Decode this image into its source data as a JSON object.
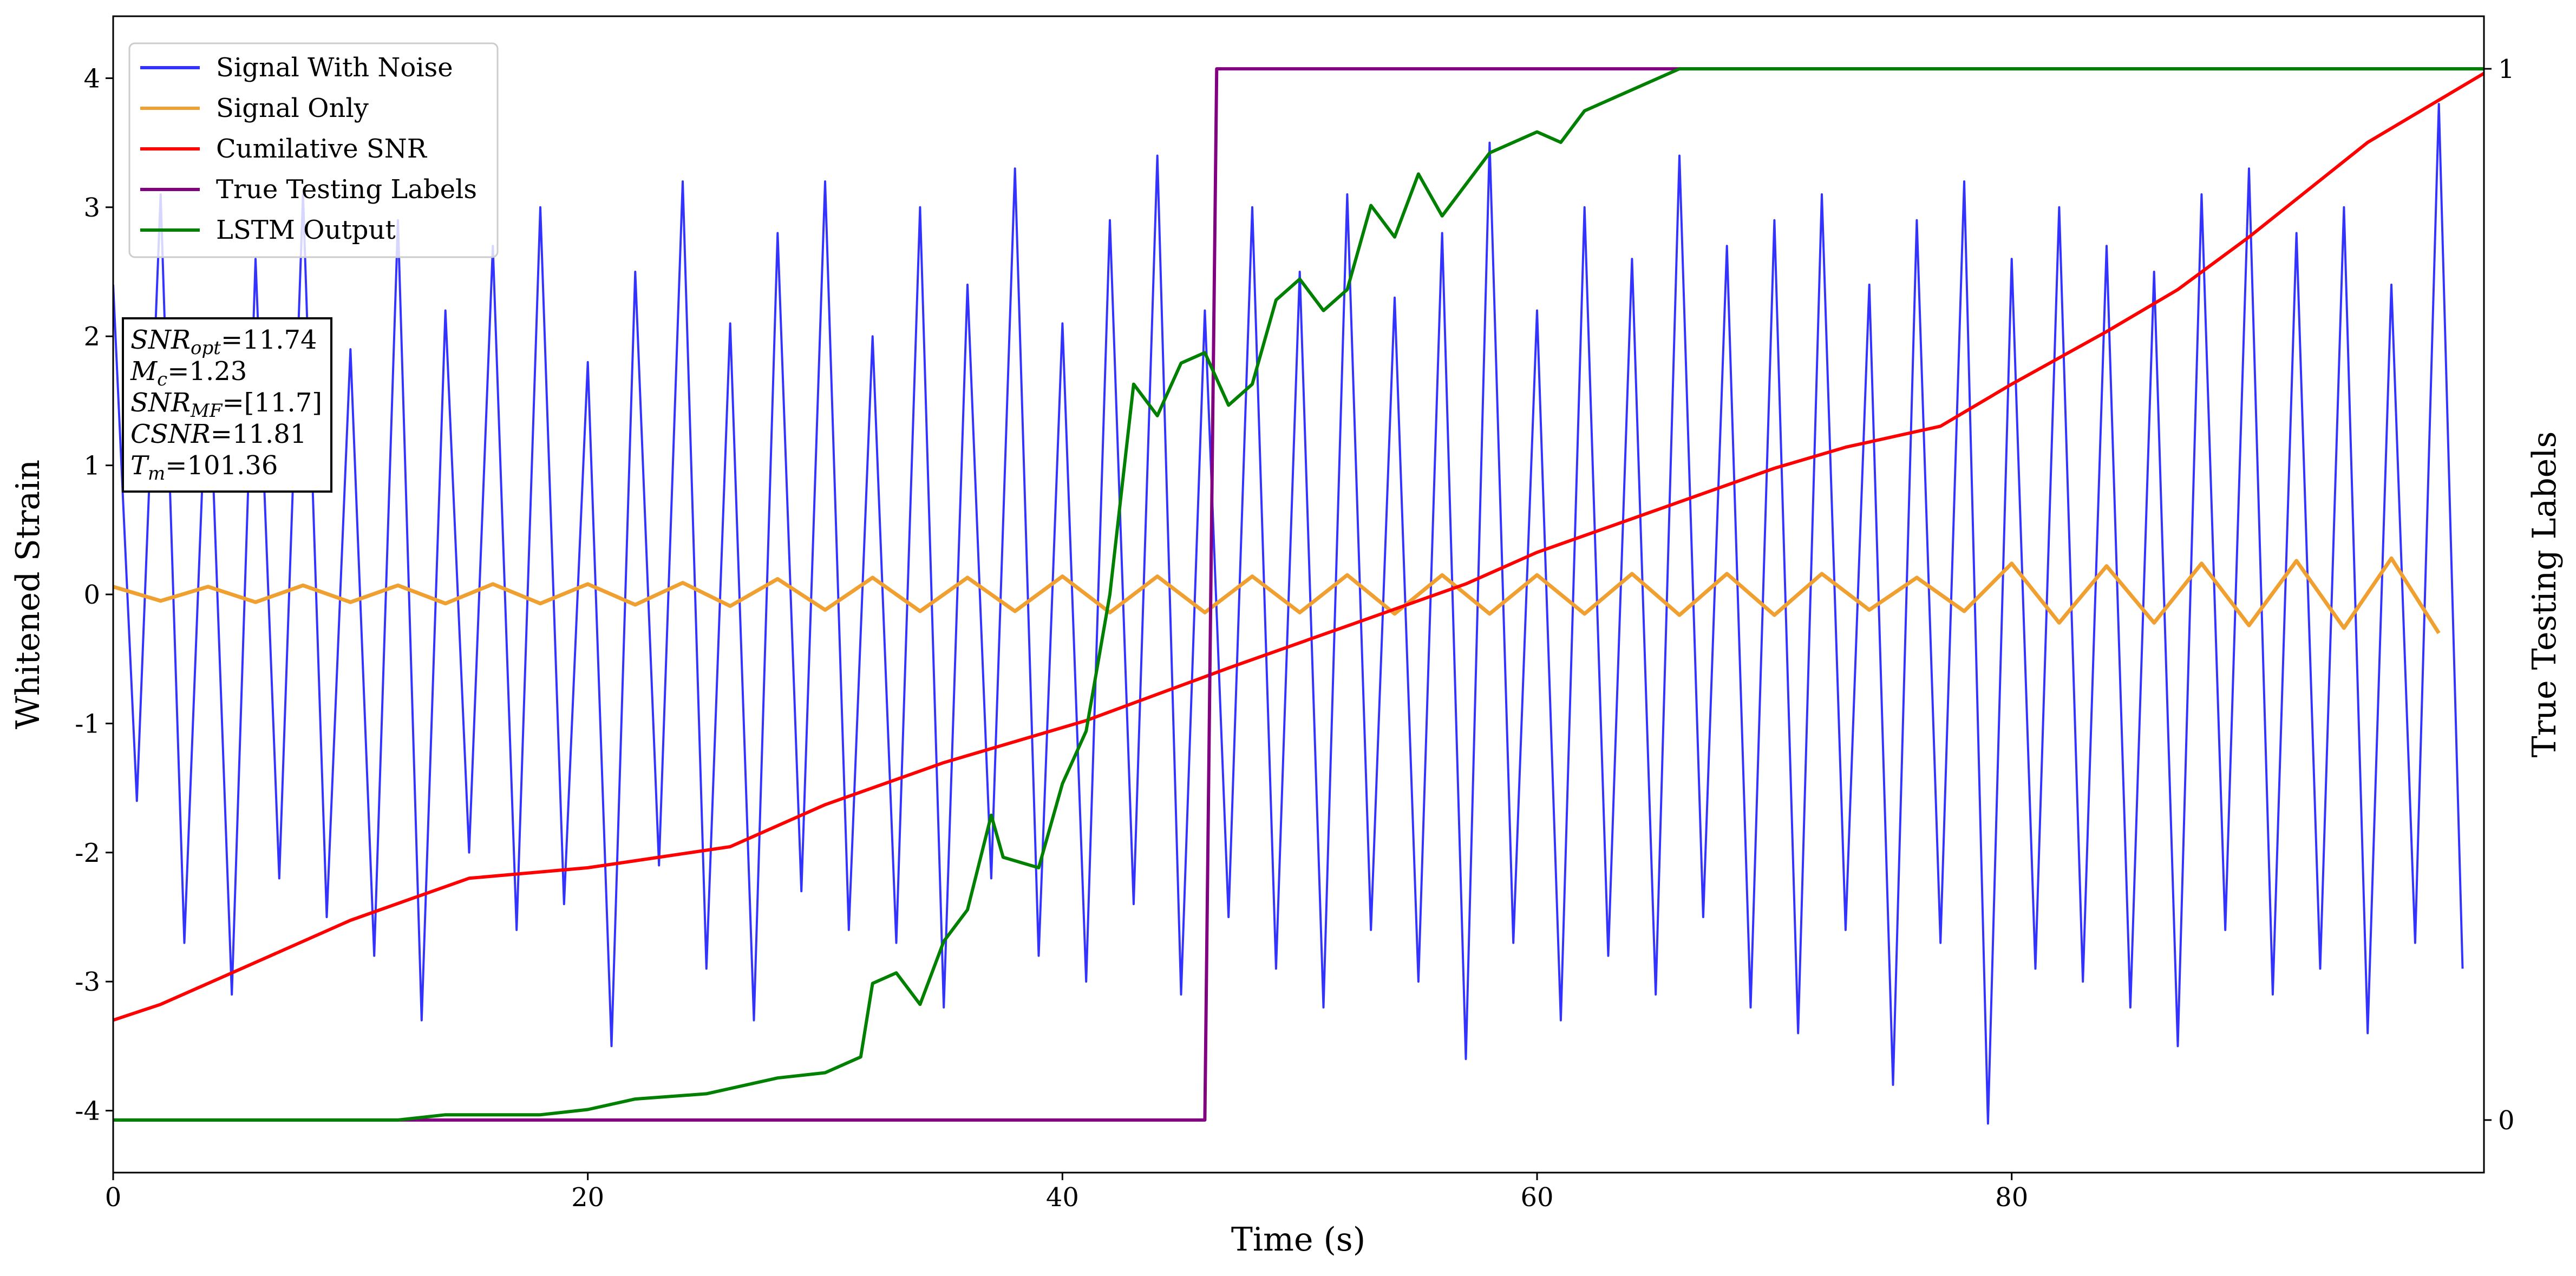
{
  "chart_data": {
    "type": "line",
    "xlabel": "Time (s)",
    "ylabel": "Whitened Strain",
    "y2label": "True Testing Labels",
    "xlim": [
      0,
      99.9
    ],
    "ylim": [
      -4.48,
      4.48
    ],
    "y2lim": [
      -0.05,
      1.05
    ],
    "xticks": [
      0,
      20,
      40,
      60,
      80
    ],
    "yticks": [
      -4,
      -3,
      -2,
      -1,
      0,
      1,
      2,
      3,
      4
    ],
    "y2ticks": [
      0,
      1
    ],
    "legend": "upper left",
    "series": [
      {
        "name": "Signal With Noise",
        "color": "#3333ff",
        "axis": "y",
        "x": [
          0,
          1,
          2,
          3,
          4,
          5,
          6,
          7,
          8,
          9,
          10,
          11,
          12,
          13,
          14,
          15,
          16,
          17,
          18,
          19,
          20,
          21,
          22,
          23,
          24,
          25,
          26,
          27,
          28,
          29,
          30,
          31,
          32,
          33,
          34,
          35,
          36,
          37,
          38,
          39,
          40,
          41,
          42,
          43,
          44,
          45,
          46,
          47,
          48,
          49,
          50,
          51,
          52,
          53,
          54,
          55,
          56,
          57,
          58,
          59,
          60,
          61,
          62,
          63,
          64,
          65,
          66,
          67,
          68,
          69,
          70,
          71,
          72,
          73,
          74,
          75,
          76,
          77,
          78,
          79,
          80,
          81,
          82,
          83,
          84,
          85,
          86,
          87,
          88,
          89,
          90,
          91,
          92,
          93,
          94,
          95,
          96,
          97,
          98,
          99
        ],
        "values": [
          2.4,
          -1.6,
          3.1,
          -2.7,
          2.0,
          -3.1,
          2.6,
          -2.2,
          3.1,
          -2.5,
          1.9,
          -2.8,
          2.9,
          -3.3,
          2.2,
          -2.0,
          2.7,
          -2.6,
          3.0,
          -2.4,
          1.8,
          -3.5,
          2.5,
          -2.1,
          3.2,
          -2.9,
          2.1,
          -3.3,
          2.8,
          -2.3,
          3.2,
          -2.6,
          2.0,
          -2.7,
          3.0,
          -3.2,
          2.4,
          -2.2,
          3.3,
          -2.8,
          2.1,
          -3.0,
          2.9,
          -2.4,
          3.4,
          -3.1,
          2.2,
          -2.5,
          3.0,
          -2.9,
          2.5,
          -3.2,
          3.1,
          -2.6,
          2.3,
          -3.0,
          2.8,
          -3.6,
          3.5,
          -2.7,
          2.2,
          -3.3,
          3.0,
          -2.8,
          2.6,
          -3.1,
          3.4,
          -2.5,
          2.7,
          -3.2,
          2.9,
          -3.4,
          3.1,
          -2.6,
          2.4,
          -3.8,
          2.9,
          -2.7,
          3.2,
          -4.1,
          2.6,
          -2.9,
          3.0,
          -3.0,
          2.7,
          -3.2,
          2.5,
          -3.5,
          3.1,
          -2.6,
          3.3,
          -3.1,
          2.8,
          -2.9,
          3.0,
          -3.4,
          2.4,
          -2.7,
          3.8,
          -2.9
        ]
      },
      {
        "name": "Signal Only",
        "color": "#f0a030",
        "axis": "y",
        "x": [
          0,
          2,
          4,
          6,
          8,
          10,
          12,
          14,
          16,
          18,
          20,
          22,
          24,
          26,
          28,
          30,
          32,
          34,
          36,
          38,
          40,
          42,
          44,
          46,
          48,
          50,
          52,
          54,
          56,
          58,
          60,
          62,
          64,
          66,
          68,
          70,
          72,
          74,
          76,
          78,
          80,
          82,
          84,
          86,
          88,
          90,
          92,
          94,
          96,
          98
        ],
        "values": [
          0.06,
          -0.05,
          0.06,
          -0.06,
          0.07,
          -0.06,
          0.07,
          -0.07,
          0.08,
          -0.07,
          0.08,
          -0.08,
          0.09,
          -0.09,
          0.12,
          -0.12,
          0.13,
          -0.13,
          0.13,
          -0.13,
          0.14,
          -0.14,
          0.14,
          -0.14,
          0.14,
          -0.14,
          0.15,
          -0.15,
          0.15,
          -0.15,
          0.15,
          -0.15,
          0.16,
          -0.16,
          0.16,
          -0.16,
          0.16,
          -0.12,
          0.13,
          -0.13,
          0.24,
          -0.22,
          0.22,
          -0.22,
          0.24,
          -0.24,
          0.26,
          -0.26,
          0.28,
          -0.3
        ]
      },
      {
        "name": "Cumilative SNR",
        "color": "#ff0000",
        "axis": "y2",
        "x": [
          0,
          2,
          5,
          10,
          15,
          20,
          23,
          26,
          30,
          35,
          41,
          47,
          52,
          57,
          60,
          65,
          70,
          73,
          77,
          80,
          84,
          87,
          90,
          95,
          100
        ],
        "values": [
          0.095,
          0.11,
          0.14,
          0.19,
          0.23,
          0.24,
          0.25,
          0.26,
          0.3,
          0.34,
          0.38,
          0.43,
          0.47,
          0.51,
          0.54,
          0.58,
          0.62,
          0.64,
          0.66,
          0.7,
          0.75,
          0.79,
          0.84,
          0.93,
          0.997
        ]
      },
      {
        "name": "True Testing Labels",
        "color": "#800080",
        "axis": "y2",
        "x": [
          0,
          46,
          46.5,
          99.9
        ],
        "values": [
          0,
          0,
          1,
          1
        ]
      },
      {
        "name": "LSTM Output",
        "color": "#008000",
        "axis": "y2",
        "x": [
          0,
          12,
          14,
          18,
          20,
          22,
          25,
          28,
          30,
          31.5,
          32,
          33,
          34,
          35,
          36,
          37,
          37.5,
          39,
          40,
          41,
          42,
          43,
          44,
          45,
          46,
          47,
          48,
          49,
          50,
          51,
          52,
          53,
          54,
          55,
          56,
          57,
          58,
          59,
          60,
          61,
          62,
          64,
          66,
          99.9
        ],
        "values": [
          0,
          0,
          0.005,
          0.005,
          0.01,
          0.02,
          0.025,
          0.04,
          0.045,
          0.06,
          0.13,
          0.14,
          0.11,
          0.17,
          0.2,
          0.29,
          0.25,
          0.24,
          0.32,
          0.37,
          0.5,
          0.7,
          0.67,
          0.72,
          0.73,
          0.68,
          0.7,
          0.78,
          0.8,
          0.77,
          0.79,
          0.87,
          0.84,
          0.9,
          0.86,
          0.89,
          0.92,
          0.93,
          0.94,
          0.93,
          0.96,
          0.98,
          1.0,
          1.0
        ]
      }
    ],
    "annotation": [
      {
        "text": "SNR",
        "subscript": "opt",
        "rest": "=11.74"
      },
      {
        "text": "M",
        "subscript": "c",
        "rest": "=1.23"
      },
      {
        "text": "SNR",
        "subscript": "MF",
        "rest": "=[11.7]"
      },
      {
        "text": "CSNR",
        "rest": "=11.81"
      },
      {
        "text": "T",
        "subscript": "m",
        "rest": "=101.36"
      }
    ]
  }
}
